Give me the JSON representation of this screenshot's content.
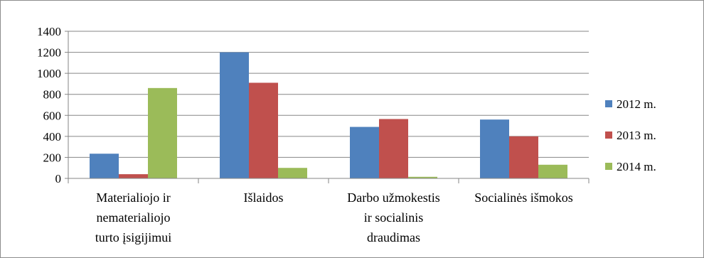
{
  "chart_data": {
    "type": "bar",
    "categories": [
      [
        "Materialiojo ir",
        "nematerialiojo",
        "turto įsigijimui"
      ],
      [
        "Išlaidos"
      ],
      [
        "Darbo užmokestis",
        "ir socialinis",
        "draudimas"
      ],
      [
        "Socialinės išmokos"
      ]
    ],
    "series": [
      {
        "name": "2012 m.",
        "color": "#4f81bd",
        "values": [
          235,
          1200,
          490,
          560
        ]
      },
      {
        "name": "2013 m.",
        "color": "#c0504d",
        "values": [
          40,
          910,
          565,
          400
        ]
      },
      {
        "name": "2014 m.",
        "color": "#9bbb59",
        "values": [
          860,
          100,
          15,
          130
        ]
      }
    ],
    "ylim": [
      0,
      1400
    ],
    "yticks": [
      0,
      200,
      400,
      600,
      800,
      1000,
      1200,
      1400
    ],
    "grid": true,
    "legend_position": "right"
  }
}
